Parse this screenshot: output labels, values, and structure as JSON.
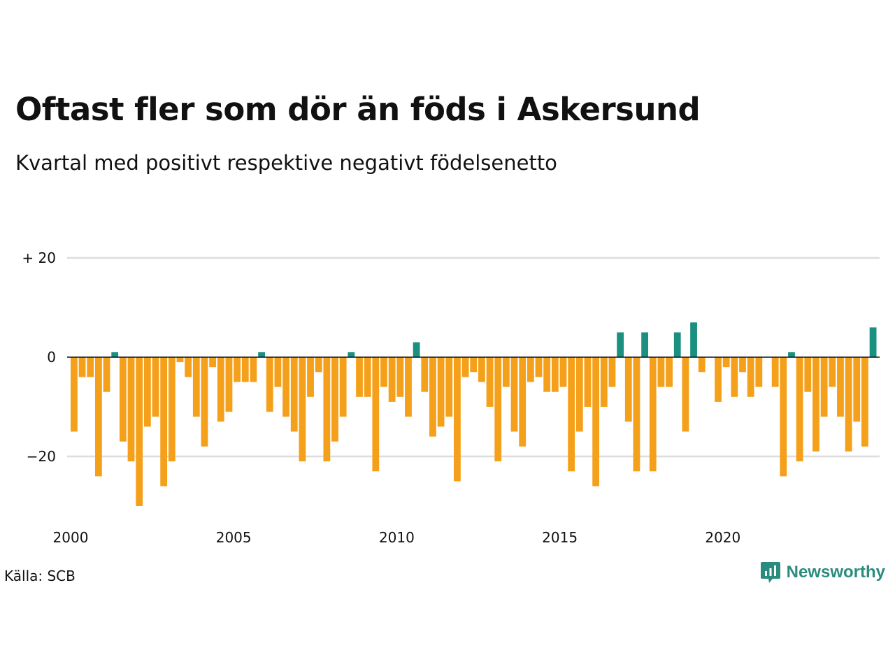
{
  "title": "Oftast fler som dör än föds i Askersund",
  "subtitle": "Kvartal med positivt respektive negativt födelsenetto",
  "source": "Källa: SCB",
  "brand": "Newsworthy",
  "colors": {
    "positive": "#1a9080",
    "negative": "#f5a01a",
    "grid": "#dddddd",
    "zero_line": "#111111",
    "brand": "#2a8c7f"
  },
  "chart_data": {
    "type": "bar",
    "x_start": "2000-Q1",
    "x_ticks": [
      "2000",
      "2005",
      "2010",
      "2015",
      "2020"
    ],
    "y_ticks": [
      "+ 20",
      "0",
      "−20"
    ],
    "y_tick_values": [
      20,
      0,
      -20
    ],
    "ylim": [
      -30,
      20
    ],
    "grid": true,
    "values": [
      -15,
      -4,
      -4,
      -24,
      -7,
      1,
      -17,
      -21,
      -30,
      -14,
      -12,
      -26,
      -21,
      -1,
      -4,
      -12,
      -18,
      -2,
      -13,
      -11,
      -5,
      -5,
      -5,
      1,
      -11,
      -6,
      -12,
      -15,
      -21,
      -8,
      -3,
      -21,
      -17,
      -12,
      1,
      -8,
      -8,
      -23,
      -6,
      -9,
      -8,
      -12,
      3,
      -7,
      -16,
      -14,
      -12,
      -25,
      -4,
      -3,
      -5,
      -10,
      -21,
      -6,
      -15,
      -18,
      -5,
      -4,
      -7,
      -7,
      -6,
      -23,
      -15,
      -10,
      -26,
      -10,
      -6,
      5,
      -13,
      -23,
      5,
      -23,
      -6,
      -6,
      5,
      -15,
      7,
      -3,
      0,
      -9,
      -2,
      -8,
      -3,
      -8,
      -6,
      0,
      -6,
      -24,
      1,
      -21,
      -7,
      -19,
      -12,
      -6,
      -12,
      -19,
      -13,
      -18,
      6
    ]
  }
}
